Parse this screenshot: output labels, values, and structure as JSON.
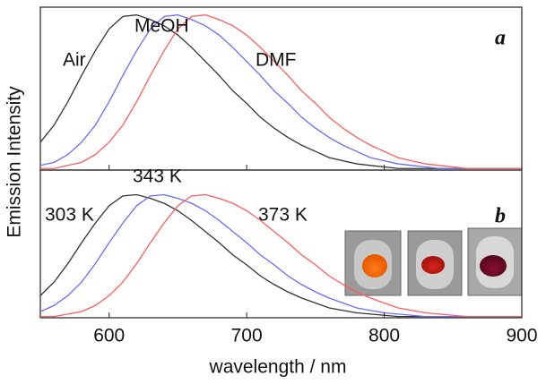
{
  "chart_data": [
    {
      "type": "line",
      "label": "a",
      "annotations": [
        "Air",
        "MeOH",
        "DMF"
      ],
      "y_label": "Emission Intensity",
      "x": [
        550,
        560,
        570,
        580,
        590,
        600,
        610,
        620,
        630,
        640,
        650,
        660,
        670,
        680,
        690,
        700,
        710,
        720,
        730,
        740,
        750,
        760,
        770,
        780,
        790,
        800,
        810,
        820,
        830,
        840,
        850,
        860,
        870,
        880,
        890,
        900
      ],
      "xlim": [
        550,
        900
      ],
      "ylim": [
        0,
        1.05
      ],
      "series": [
        {
          "name": "Air",
          "color": "#333333",
          "values": [
            0.18,
            0.29,
            0.44,
            0.61,
            0.77,
            0.91,
            0.99,
            1.0,
            0.97,
            0.93,
            0.87,
            0.79,
            0.7,
            0.61,
            0.51,
            0.43,
            0.34,
            0.27,
            0.21,
            0.16,
            0.12,
            0.08,
            0.06,
            0.04,
            0.03,
            0.02,
            0.01,
            0.01,
            0.01,
            0.01,
            0.01,
            0.01,
            0.01,
            0.01,
            0.01,
            0.01
          ]
        },
        {
          "name": "MeOH",
          "color": "#6b6bff",
          "values": [
            0.03,
            0.05,
            0.1,
            0.18,
            0.29,
            0.44,
            0.61,
            0.77,
            0.91,
            0.99,
            1.0,
            0.97,
            0.93,
            0.87,
            0.79,
            0.7,
            0.61,
            0.51,
            0.43,
            0.34,
            0.27,
            0.21,
            0.16,
            0.12,
            0.08,
            0.06,
            0.04,
            0.03,
            0.02,
            0.01,
            0.01,
            0.01,
            0.01,
            0.01,
            0.01,
            0.01
          ]
        },
        {
          "name": "DMF",
          "color": "#ff5c5c",
          "values": [
            0.01,
            0.01,
            0.03,
            0.05,
            0.1,
            0.18,
            0.29,
            0.44,
            0.61,
            0.77,
            0.91,
            0.99,
            1.0,
            0.97,
            0.93,
            0.87,
            0.79,
            0.7,
            0.61,
            0.51,
            0.43,
            0.34,
            0.27,
            0.21,
            0.16,
            0.12,
            0.08,
            0.06,
            0.04,
            0.03,
            0.02,
            0.01,
            0.01,
            0.01,
            0.01,
            0.01
          ]
        }
      ]
    },
    {
      "type": "line",
      "label": "b",
      "annotations": [
        "303 K",
        "343 K",
        "373 K"
      ],
      "x_label": "wavelength / nm",
      "x": [
        550,
        560,
        570,
        580,
        590,
        600,
        610,
        620,
        630,
        640,
        650,
        660,
        670,
        680,
        690,
        700,
        710,
        720,
        730,
        740,
        750,
        760,
        770,
        780,
        790,
        800,
        810,
        820,
        830,
        840,
        850,
        860,
        870,
        880,
        890,
        900
      ],
      "xlim": [
        550,
        900
      ],
      "xticks": [
        600,
        700,
        800,
        900
      ],
      "ylim": [
        0,
        1.2
      ],
      "series": [
        {
          "name": "303 K",
          "color": "#333333",
          "values": [
            0.18,
            0.29,
            0.44,
            0.61,
            0.77,
            0.91,
            0.99,
            1.0,
            0.97,
            0.93,
            0.87,
            0.79,
            0.7,
            0.61,
            0.51,
            0.43,
            0.34,
            0.27,
            0.21,
            0.16,
            0.12,
            0.08,
            0.06,
            0.04,
            0.03,
            0.02,
            0.01,
            0.01,
            0.01,
            0.01,
            0.01,
            0.01,
            0.01,
            0.01,
            0.01,
            0.01
          ]
        },
        {
          "name": "343 K",
          "color": "#6b6bff",
          "values": [
            0.05,
            0.1,
            0.18,
            0.29,
            0.44,
            0.61,
            0.77,
            0.91,
            0.99,
            1.0,
            0.97,
            0.93,
            0.87,
            0.79,
            0.7,
            0.61,
            0.51,
            0.43,
            0.34,
            0.27,
            0.21,
            0.16,
            0.12,
            0.08,
            0.06,
            0.04,
            0.03,
            0.02,
            0.01,
            0.01,
            0.01,
            0.01,
            0.01,
            0.01,
            0.01,
            0.01
          ]
        },
        {
          "name": "373 K",
          "color": "#ff5c5c",
          "values": [
            0.01,
            0.01,
            0.03,
            0.05,
            0.1,
            0.18,
            0.29,
            0.44,
            0.61,
            0.77,
            0.91,
            0.99,
            1.0,
            0.97,
            0.93,
            0.87,
            0.79,
            0.7,
            0.61,
            0.51,
            0.43,
            0.34,
            0.27,
            0.21,
            0.16,
            0.12,
            0.08,
            0.06,
            0.04,
            0.03,
            0.02,
            0.01,
            0.01,
            0.01,
            0.01,
            0.01
          ]
        }
      ]
    }
  ]
}
